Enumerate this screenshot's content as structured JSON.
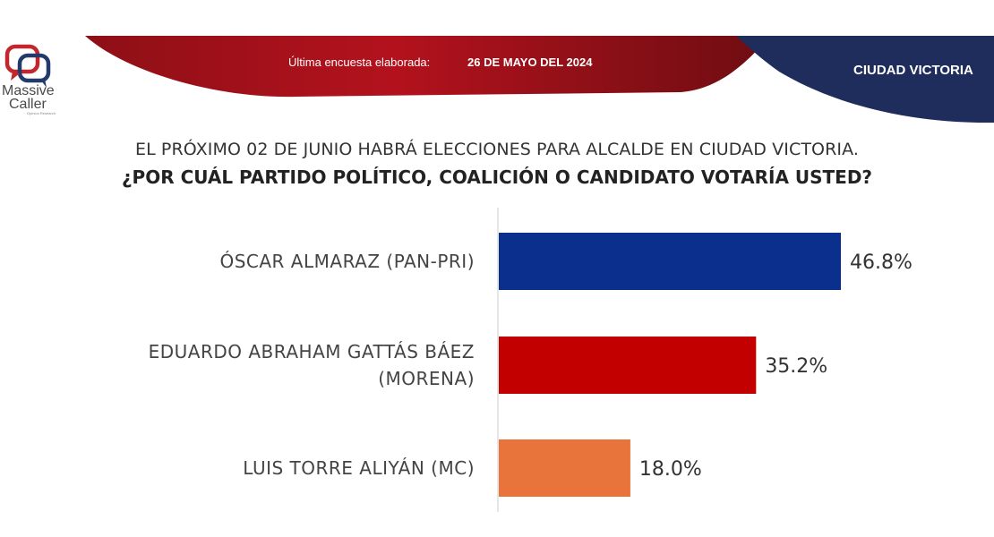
{
  "header": {
    "logo_line1": "Massive",
    "logo_line2": "Caller",
    "logo_tagline": "Opinion Research",
    "survey_label": "Última encuesta elaborada:",
    "survey_date": "26 DE MAYO DEL 2024",
    "city": "CIUDAD VICTORIA"
  },
  "question": {
    "line1": "EL PRÓXIMO 02 DE JUNIO HABRÁ ELECCIONES PARA ALCALDE EN CIUDAD VICTORIA.",
    "line2": "¿POR CUÁL PARTIDO POLÍTICO, COALICIÓN O CANDIDATO VOTARÍA USTED?"
  },
  "colors": {
    "banner_red": "#b3121d",
    "banner_navy": "#1f2d5c"
  },
  "chart_data": {
    "type": "bar",
    "orientation": "horizontal",
    "categories": [
      [
        "ÓSCAR ALMARAZ (PAN-PRI)"
      ],
      [
        "EDUARDO ABRAHAM GATTÁS BÁEZ",
        "(MORENA)"
      ],
      [
        "LUIS TORRE ALIYÁN (MC)"
      ]
    ],
    "values": [
      46.8,
      35.2,
      18.0
    ],
    "value_labels": [
      "46.8%",
      "35.2%",
      "18.0%"
    ],
    "colors": [
      "#0a2f8c",
      "#c20000",
      "#e8743b"
    ],
    "xlim": [
      0,
      55
    ],
    "grid": false,
    "legend": "none"
  }
}
